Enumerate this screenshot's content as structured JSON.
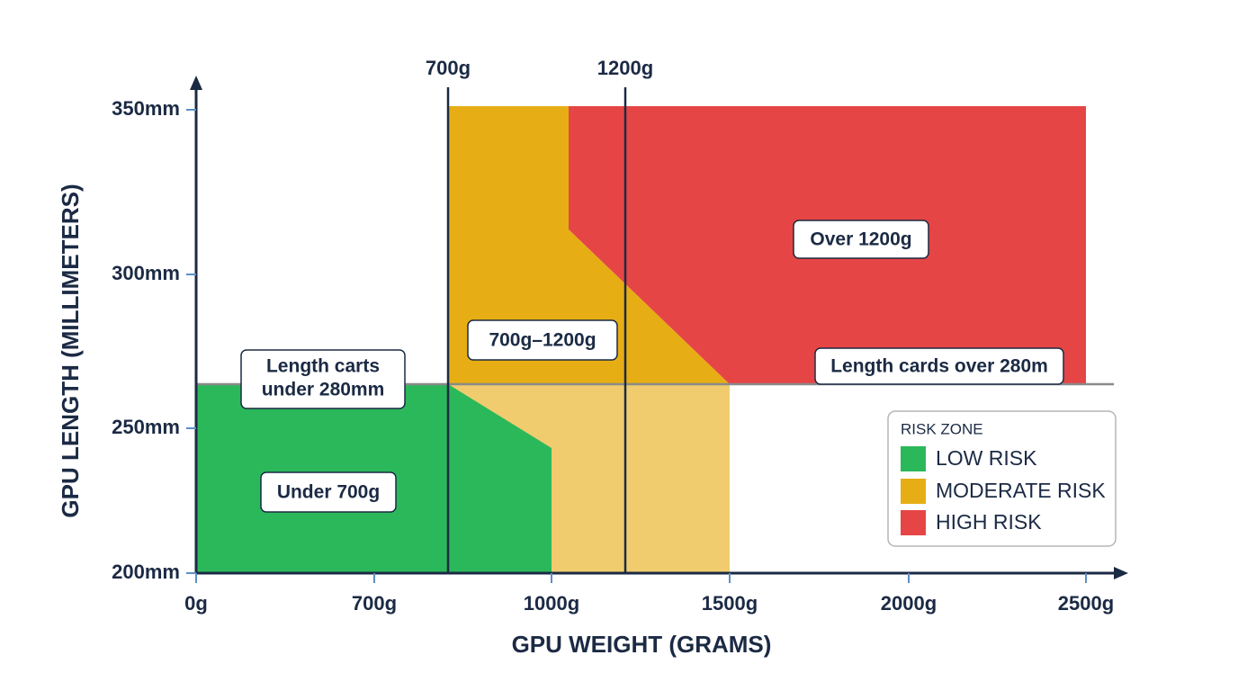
{
  "axes": {
    "y_label": "GPU LENGTH (MILLIMETERS)",
    "x_label": "GPU WEIGHT (GRAMS)",
    "y_ticks": [
      "350mm",
      "300mm",
      "250mm",
      "200mm"
    ],
    "x_ticks": [
      "0g",
      "700g",
      "1000g",
      "1500g",
      "2000g",
      "2500g"
    ]
  },
  "markers": [
    "700g",
    "1200g"
  ],
  "zone_labels": [
    "Over 1200g",
    "700g–1200g",
    "Length cards over 280m",
    [
      "Length carts",
      "under 280mm"
    ],
    "Under 700g"
  ],
  "legend": {
    "title": "RISK ZONE",
    "items": [
      "LOW RISK",
      "MODERATE RISK",
      "HIGH RISK"
    ]
  }
}
